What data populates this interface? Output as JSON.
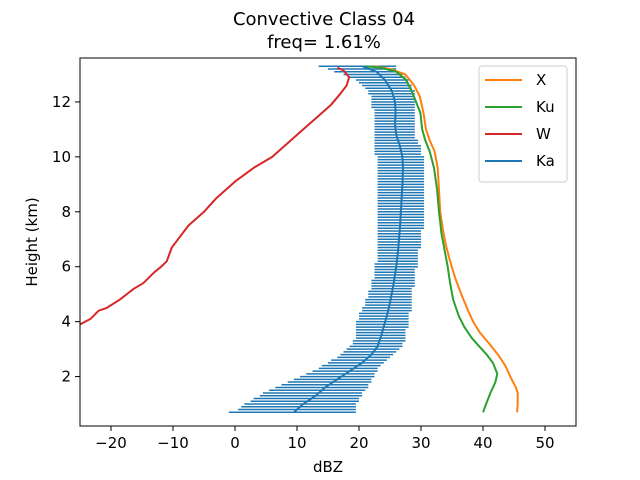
{
  "chart_data": {
    "type": "line",
    "title_line1": "Convective Class 04",
    "title_line2": "freq=  1.61%",
    "xlabel": "dBZ",
    "ylabel": "Height (km)",
    "xlim": [
      -25,
      55
    ],
    "ylim": [
      0.2,
      13.6
    ],
    "xticks": [
      -20,
      -10,
      0,
      10,
      20,
      30,
      40,
      50
    ],
    "yticks": [
      2,
      4,
      6,
      8,
      10,
      12
    ],
    "xtick_labels": [
      "−20",
      "−10",
      "0",
      "10",
      "20",
      "30",
      "40",
      "50"
    ],
    "ytick_labels": [
      "2",
      "4",
      "6",
      "8",
      "10",
      "12"
    ],
    "grid": false,
    "legend_position": "top-right",
    "series": [
      {
        "name": "X",
        "color": "#ff7f0e",
        "points": [
          [
            45.5,
            0.7
          ],
          [
            45.6,
            1.0
          ],
          [
            45.6,
            1.4
          ],
          [
            45.3,
            1.6
          ],
          [
            44.4,
            2.0
          ],
          [
            43.6,
            2.4
          ],
          [
            42.4,
            2.8
          ],
          [
            41.0,
            3.2
          ],
          [
            39.5,
            3.6
          ],
          [
            38.4,
            4.0
          ],
          [
            37.6,
            4.4
          ],
          [
            36.5,
            5.0
          ],
          [
            35.5,
            5.6
          ],
          [
            34.7,
            6.2
          ],
          [
            34.0,
            6.8
          ],
          [
            33.5,
            7.4
          ],
          [
            33.1,
            8.0
          ],
          [
            32.9,
            8.8
          ],
          [
            32.7,
            9.6
          ],
          [
            32.2,
            10.2
          ],
          [
            31.4,
            10.6
          ],
          [
            30.8,
            11.0
          ],
          [
            30.4,
            11.6
          ],
          [
            29.8,
            12.2
          ],
          [
            28.9,
            12.6
          ],
          [
            27.5,
            13.0
          ],
          [
            25.0,
            13.2
          ],
          [
            22.5,
            13.3
          ]
        ]
      },
      {
        "name": "Ku",
        "color": "#2ca02c",
        "points": [
          [
            40.0,
            0.7
          ],
          [
            40.5,
            1.0
          ],
          [
            41.2,
            1.4
          ],
          [
            42.0,
            1.8
          ],
          [
            42.3,
            2.1
          ],
          [
            41.6,
            2.5
          ],
          [
            40.6,
            2.8
          ],
          [
            39.4,
            3.1
          ],
          [
            38.2,
            3.4
          ],
          [
            37.0,
            3.8
          ],
          [
            36.1,
            4.2
          ],
          [
            35.2,
            4.8
          ],
          [
            34.7,
            5.4
          ],
          [
            34.3,
            6.0
          ],
          [
            33.8,
            6.6
          ],
          [
            33.3,
            7.2
          ],
          [
            32.9,
            8.0
          ],
          [
            32.6,
            8.8
          ],
          [
            32.1,
            9.6
          ],
          [
            31.4,
            10.2
          ],
          [
            30.7,
            10.6
          ],
          [
            30.2,
            11.0
          ],
          [
            29.9,
            11.6
          ],
          [
            29.2,
            12.0
          ],
          [
            28.5,
            12.4
          ],
          [
            27.6,
            12.8
          ],
          [
            26.0,
            13.1
          ],
          [
            23.5,
            13.25
          ],
          [
            21.0,
            13.3
          ]
        ]
      },
      {
        "name": "W",
        "color": "#d62728",
        "points": [
          [
            -25.0,
            3.9
          ],
          [
            -23.3,
            4.1
          ],
          [
            -22.0,
            4.4
          ],
          [
            -20.7,
            4.5
          ],
          [
            -18.6,
            4.8
          ],
          [
            -16.3,
            5.2
          ],
          [
            -14.8,
            5.4
          ],
          [
            -13.0,
            5.8
          ],
          [
            -11.9,
            6.0
          ],
          [
            -11.0,
            6.2
          ],
          [
            -10.2,
            6.7
          ],
          [
            -9.2,
            7.0
          ],
          [
            -7.5,
            7.5
          ],
          [
            -5.0,
            8.0
          ],
          [
            -3.0,
            8.5
          ],
          [
            0.0,
            9.1
          ],
          [
            3.0,
            9.6
          ],
          [
            6.0,
            10.0
          ],
          [
            8.5,
            10.5
          ],
          [
            11.0,
            11.0
          ],
          [
            13.5,
            11.5
          ],
          [
            15.5,
            11.9
          ],
          [
            17.0,
            12.3
          ],
          [
            18.0,
            12.6
          ],
          [
            18.4,
            12.9
          ],
          [
            17.5,
            13.15
          ],
          [
            16.5,
            13.25
          ]
        ]
      },
      {
        "name": "Ka",
        "color": "#1f77b4",
        "points": [
          [
            9.5,
            0.7
          ],
          [
            11.0,
            1.0
          ],
          [
            13.0,
            1.3
          ],
          [
            14.5,
            1.6
          ],
          [
            16.5,
            1.9
          ],
          [
            18.5,
            2.2
          ],
          [
            20.5,
            2.5
          ],
          [
            22.0,
            2.8
          ],
          [
            23.0,
            3.1
          ],
          [
            23.6,
            3.5
          ],
          [
            24.1,
            3.9
          ],
          [
            24.6,
            4.3
          ],
          [
            25.1,
            4.8
          ],
          [
            25.6,
            5.4
          ],
          [
            26.0,
            6.0
          ],
          [
            26.3,
            6.6
          ],
          [
            26.6,
            7.4
          ],
          [
            26.8,
            8.2
          ],
          [
            27.0,
            9.0
          ],
          [
            27.1,
            9.6
          ],
          [
            27.0,
            10.0
          ],
          [
            26.6,
            10.4
          ],
          [
            26.0,
            10.8
          ],
          [
            25.8,
            11.2
          ],
          [
            25.9,
            11.6
          ],
          [
            25.8,
            12.0
          ],
          [
            25.3,
            12.4
          ],
          [
            24.2,
            12.8
          ],
          [
            22.8,
            13.1
          ],
          [
            20.5,
            13.3
          ]
        ]
      }
    ],
    "ka_spread": {
      "color": "#1f77b4",
      "rows": [
        [
          -1.0,
          19.5,
          0.7
        ],
        [
          0.5,
          19.5,
          0.8
        ],
        [
          1.0,
          19.5,
          0.9
        ],
        [
          1.5,
          19.5,
          1.0
        ],
        [
          2.5,
          20.0,
          1.1
        ],
        [
          3.0,
          20.0,
          1.2
        ],
        [
          4.0,
          20.5,
          1.3
        ],
        [
          4.5,
          20.5,
          1.4
        ],
        [
          5.5,
          21.0,
          1.5
        ],
        [
          6.5,
          21.5,
          1.6
        ],
        [
          7.5,
          21.5,
          1.7
        ],
        [
          8.5,
          22.0,
          1.8
        ],
        [
          9.5,
          22.0,
          1.9
        ],
        [
          10.5,
          22.5,
          2.0
        ],
        [
          11.5,
          22.5,
          2.1
        ],
        [
          12.5,
          23.0,
          2.2
        ],
        [
          13.5,
          23.0,
          2.3
        ],
        [
          14.0,
          23.5,
          2.4
        ],
        [
          15.0,
          24.0,
          2.5
        ],
        [
          15.5,
          24.5,
          2.6
        ],
        [
          16.5,
          25.0,
          2.7
        ],
        [
          17.0,
          25.5,
          2.8
        ],
        [
          17.5,
          26.0,
          2.9
        ],
        [
          18.0,
          26.5,
          3.0
        ],
        [
          18.5,
          27.0,
          3.1
        ],
        [
          19.0,
          27.0,
          3.2
        ],
        [
          19.0,
          27.5,
          3.3
        ],
        [
          19.5,
          27.5,
          3.4
        ],
        [
          19.5,
          27.5,
          3.5
        ],
        [
          19.5,
          27.5,
          3.6
        ],
        [
          19.5,
          27.5,
          3.7
        ],
        [
          19.5,
          28.0,
          3.8
        ],
        [
          19.5,
          28.0,
          3.9
        ],
        [
          19.5,
          28.0,
          4.0
        ],
        [
          20.0,
          28.0,
          4.1
        ],
        [
          20.0,
          28.0,
          4.2
        ],
        [
          20.0,
          28.0,
          4.3
        ],
        [
          20.5,
          28.5,
          4.4
        ],
        [
          20.5,
          28.5,
          4.5
        ],
        [
          21.0,
          28.5,
          4.6
        ],
        [
          21.0,
          28.5,
          4.7
        ],
        [
          21.0,
          28.5,
          4.8
        ],
        [
          21.5,
          28.5,
          4.9
        ],
        [
          21.5,
          28.5,
          5.0
        ],
        [
          21.5,
          28.5,
          5.1
        ],
        [
          22.0,
          28.5,
          5.2
        ],
        [
          22.0,
          29.0,
          5.3
        ],
        [
          22.0,
          29.0,
          5.4
        ],
        [
          22.0,
          29.0,
          5.5
        ],
        [
          22.5,
          29.0,
          5.6
        ],
        [
          22.5,
          29.0,
          5.7
        ],
        [
          22.5,
          29.0,
          5.8
        ],
        [
          22.5,
          29.0,
          5.9
        ],
        [
          22.5,
          29.5,
          6.0
        ],
        [
          22.5,
          29.5,
          6.1
        ],
        [
          23.0,
          29.5,
          6.2
        ],
        [
          23.0,
          29.5,
          6.3
        ],
        [
          23.0,
          29.5,
          6.4
        ],
        [
          23.0,
          29.5,
          6.5
        ],
        [
          23.0,
          29.5,
          6.6
        ],
        [
          23.0,
          30.0,
          6.7
        ],
        [
          23.0,
          30.0,
          6.8
        ],
        [
          23.0,
          30.0,
          6.9
        ],
        [
          23.0,
          30.0,
          7.0
        ],
        [
          23.0,
          30.0,
          7.1
        ],
        [
          23.0,
          30.0,
          7.2
        ],
        [
          23.0,
          30.0,
          7.3
        ],
        [
          23.0,
          30.5,
          7.4
        ],
        [
          23.0,
          30.5,
          7.5
        ],
        [
          23.0,
          30.5,
          7.6
        ],
        [
          23.0,
          30.5,
          7.7
        ],
        [
          23.0,
          30.5,
          7.8
        ],
        [
          23.0,
          30.5,
          7.9
        ],
        [
          23.0,
          30.5,
          8.0
        ],
        [
          23.0,
          30.5,
          8.1
        ],
        [
          23.0,
          30.5,
          8.2
        ],
        [
          23.0,
          30.5,
          8.3
        ],
        [
          23.0,
          30.5,
          8.4
        ],
        [
          23.0,
          30.5,
          8.5
        ],
        [
          23.0,
          30.5,
          8.6
        ],
        [
          23.0,
          30.5,
          8.7
        ],
        [
          23.0,
          30.5,
          8.8
        ],
        [
          23.0,
          30.5,
          8.9
        ],
        [
          23.0,
          30.5,
          9.0
        ],
        [
          23.0,
          30.5,
          9.1
        ],
        [
          23.0,
          30.5,
          9.2
        ],
        [
          23.0,
          30.5,
          9.3
        ],
        [
          23.0,
          30.5,
          9.4
        ],
        [
          23.0,
          30.5,
          9.5
        ],
        [
          23.0,
          30.5,
          9.6
        ],
        [
          23.0,
          30.5,
          9.7
        ],
        [
          23.0,
          30.5,
          9.8
        ],
        [
          23.0,
          30.5,
          9.9
        ],
        [
          23.0,
          30.5,
          10.0
        ],
        [
          22.5,
          30.0,
          10.1
        ],
        [
          22.5,
          30.0,
          10.2
        ],
        [
          22.5,
          30.0,
          10.3
        ],
        [
          22.5,
          30.0,
          10.4
        ],
        [
          22.5,
          29.5,
          10.5
        ],
        [
          22.5,
          29.5,
          10.6
        ],
        [
          22.5,
          29.0,
          10.7
        ],
        [
          22.5,
          29.0,
          10.8
        ],
        [
          22.5,
          29.0,
          10.9
        ],
        [
          22.5,
          29.0,
          11.0
        ],
        [
          22.5,
          29.0,
          11.1
        ],
        [
          22.5,
          29.0,
          11.2
        ],
        [
          22.5,
          29.0,
          11.3
        ],
        [
          22.5,
          29.0,
          11.4
        ],
        [
          22.5,
          29.0,
          11.5
        ],
        [
          22.5,
          29.0,
          11.6
        ],
        [
          22.5,
          29.0,
          11.7
        ],
        [
          22.0,
          29.0,
          11.8
        ],
        [
          22.0,
          29.0,
          11.9
        ],
        [
          22.0,
          29.0,
          12.0
        ],
        [
          22.0,
          29.0,
          12.1
        ],
        [
          22.0,
          29.0,
          12.2
        ],
        [
          21.5,
          29.0,
          12.3
        ],
        [
          21.5,
          29.0,
          12.4
        ],
        [
          21.0,
          28.5,
          12.5
        ],
        [
          20.5,
          28.5,
          12.6
        ],
        [
          20.0,
          28.0,
          12.7
        ],
        [
          19.5,
          28.0,
          12.8
        ],
        [
          18.5,
          27.5,
          12.9
        ],
        [
          17.5,
          27.0,
          13.0
        ],
        [
          16.0,
          26.5,
          13.1
        ],
        [
          15.0,
          26.0,
          13.2
        ],
        [
          13.5,
          26.0,
          13.3
        ]
      ]
    }
  }
}
